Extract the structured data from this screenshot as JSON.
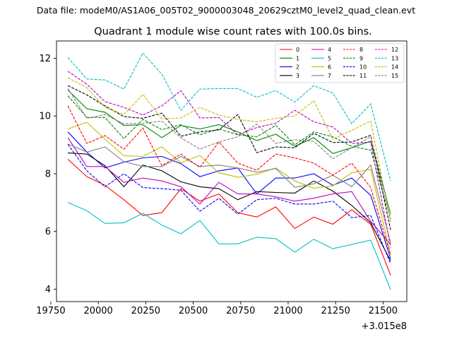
{
  "header_text": "Data file: modeM0/AS1A06_005T02_9000003048_20629cztM0_level2_quad_clean.evt",
  "chart_data": {
    "type": "line",
    "title": "Quadrant 1 module wise count rates with 100.0s bins.",
    "xlabel": "",
    "ylabel": "",
    "x_offset_label": "+3.015e8",
    "xlim": [
      19780,
      21625
    ],
    "ylim": [
      3.57,
      12.6
    ],
    "xticks": [
      19750,
      20000,
      20250,
      20500,
      20750,
      21000,
      21250,
      21500
    ],
    "xtick_labels": [
      "19750",
      "20000",
      "20250",
      "20500",
      "20750",
      "21000",
      "21250",
      "21500"
    ],
    "yticks": [
      4,
      6,
      8,
      10,
      12
    ],
    "ytick_labels": [
      "4",
      "6",
      "8",
      "10",
      "12"
    ],
    "legend_position": "upper-right",
    "x": [
      19840,
      19940,
      20035,
      20135,
      20235,
      20335,
      20435,
      20535,
      20635,
      20735,
      20835,
      20935,
      21035,
      21135,
      21235,
      21335,
      21435,
      21540
    ],
    "series": [
      {
        "name": "0",
        "color": "#ff0000",
        "dash": "solid",
        "values": [
          8.5,
          7.9,
          7.6,
          7.1,
          6.55,
          6.65,
          7.48,
          7.05,
          7.3,
          6.65,
          6.5,
          6.85,
          6.1,
          6.5,
          6.25,
          6.75,
          6.25,
          4.48
        ]
      },
      {
        "name": "1",
        "color": "#008000",
        "dash": "solid",
        "values": [
          10.9,
          10.25,
          10.13,
          9.67,
          9.7,
          9.25,
          9.67,
          9.55,
          9.7,
          9.45,
          9.15,
          9.37,
          8.95,
          9.25,
          8.7,
          8.9,
          9.13,
          6.6
        ]
      },
      {
        "name": "2",
        "color": "#0000ff",
        "dash": "solid",
        "values": [
          9.45,
          8.75,
          8.2,
          8.4,
          8.55,
          8.6,
          8.35,
          7.9,
          8.1,
          8.2,
          7.3,
          7.85,
          7.85,
          8.0,
          7.6,
          7.85,
          7.25,
          5.05
        ]
      },
      {
        "name": "3",
        "color": "#000000",
        "dash": "solid",
        "values": [
          8.72,
          8.68,
          8.28,
          7.55,
          8.3,
          8.1,
          7.72,
          7.55,
          7.48,
          7.1,
          7.38,
          7.35,
          7.33,
          7.75,
          7.4,
          6.9,
          6.3,
          4.98
        ]
      },
      {
        "name": "4",
        "color": "#bf00bf",
        "dash": "solid",
        "values": [
          9.25,
          8.25,
          8.25,
          7.7,
          7.85,
          7.75,
          7.55,
          6.95,
          7.7,
          7.3,
          7.3,
          7.2,
          7.05,
          7.15,
          7.3,
          7.38,
          6.35,
          5.55
        ]
      },
      {
        "name": "5",
        "color": "#00bfbf",
        "dash": "solid",
        "values": [
          7.0,
          6.72,
          6.28,
          6.3,
          6.63,
          6.22,
          5.92,
          6.38,
          5.57,
          5.57,
          5.8,
          5.75,
          5.28,
          5.73,
          5.4,
          5.55,
          5.7,
          3.98
        ]
      },
      {
        "name": "6",
        "color": "#bfbf00",
        "dash": "solid",
        "values": [
          9.55,
          9.78,
          9.2,
          8.62,
          8.6,
          8.93,
          8.38,
          8.63,
          8.03,
          7.88,
          7.98,
          8.2,
          7.75,
          7.5,
          7.58,
          8.03,
          8.15,
          5.2
        ]
      },
      {
        "name": "7",
        "color": "#808080",
        "dash": "solid",
        "values": [
          9.03,
          8.75,
          8.93,
          8.42,
          8.25,
          8.25,
          8.6,
          8.25,
          8.3,
          8.2,
          8.05,
          8.18,
          7.53,
          7.65,
          7.95,
          7.55,
          8.3,
          5.6
        ]
      },
      {
        "name": "8",
        "color": "#ff0000",
        "dash": "dashed",
        "values": [
          10.35,
          9.05,
          9.32,
          8.85,
          9.58,
          8.28,
          8.68,
          8.22,
          9.1,
          8.37,
          8.12,
          8.68,
          8.55,
          8.37,
          7.95,
          8.37,
          7.52,
          5.18
        ]
      },
      {
        "name": "9",
        "color": "#008000",
        "dash": "dashed",
        "values": [
          10.7,
          9.95,
          9.95,
          9.22,
          9.88,
          9.53,
          9.7,
          9.35,
          9.55,
          9.35,
          9.28,
          9.68,
          9.0,
          9.45,
          9.28,
          8.95,
          8.82,
          6.43
        ]
      },
      {
        "name": "10",
        "color": "#0000ff",
        "dash": "dashed",
        "values": [
          9.02,
          8.1,
          7.55,
          8.0,
          7.52,
          7.48,
          7.43,
          6.7,
          7.15,
          6.6,
          7.1,
          7.15,
          6.95,
          6.95,
          7.05,
          6.48,
          6.55,
          4.88
        ]
      },
      {
        "name": "11",
        "color": "#000000",
        "dash": "dashed",
        "values": [
          11.05,
          10.73,
          10.35,
          9.98,
          9.92,
          10.1,
          9.3,
          9.45,
          9.52,
          10.05,
          8.73,
          8.93,
          8.9,
          9.4,
          9.08,
          9.1,
          9.33,
          6.05
        ]
      },
      {
        "name": "12",
        "color": "#bf00bf",
        "dash": "dashed",
        "values": [
          11.55,
          11.1,
          10.5,
          10.3,
          10.03,
          10.35,
          10.88,
          9.93,
          9.95,
          9.35,
          9.6,
          9.75,
          10.2,
          9.8,
          9.62,
          9.05,
          9.1,
          5.45
        ]
      },
      {
        "name": "13",
        "color": "#00bfbf",
        "dash": "dashed",
        "values": [
          12.03,
          11.28,
          11.25,
          10.93,
          12.18,
          11.45,
          10.2,
          10.93,
          10.95,
          10.95,
          10.65,
          10.88,
          10.48,
          11.05,
          10.8,
          9.73,
          10.42,
          7.75
        ]
      },
      {
        "name": "14",
        "color": "#bfbf00",
        "dash": "dashed",
        "values": [
          11.33,
          10.98,
          10.3,
          10.05,
          10.75,
          9.9,
          9.93,
          10.3,
          10.03,
          9.88,
          9.8,
          9.92,
          10.0,
          10.53,
          9.2,
          9.5,
          9.83,
          6.32
        ]
      },
      {
        "name": "15",
        "color": "#808080",
        "dash": "dashed",
        "values": [
          10.95,
          9.92,
          10.05,
          9.73,
          9.75,
          9.82,
          9.25,
          8.85,
          9.1,
          9.28,
          9.72,
          9.05,
          9.18,
          9.12,
          8.52,
          8.9,
          9.28,
          6.6
        ]
      }
    ]
  }
}
